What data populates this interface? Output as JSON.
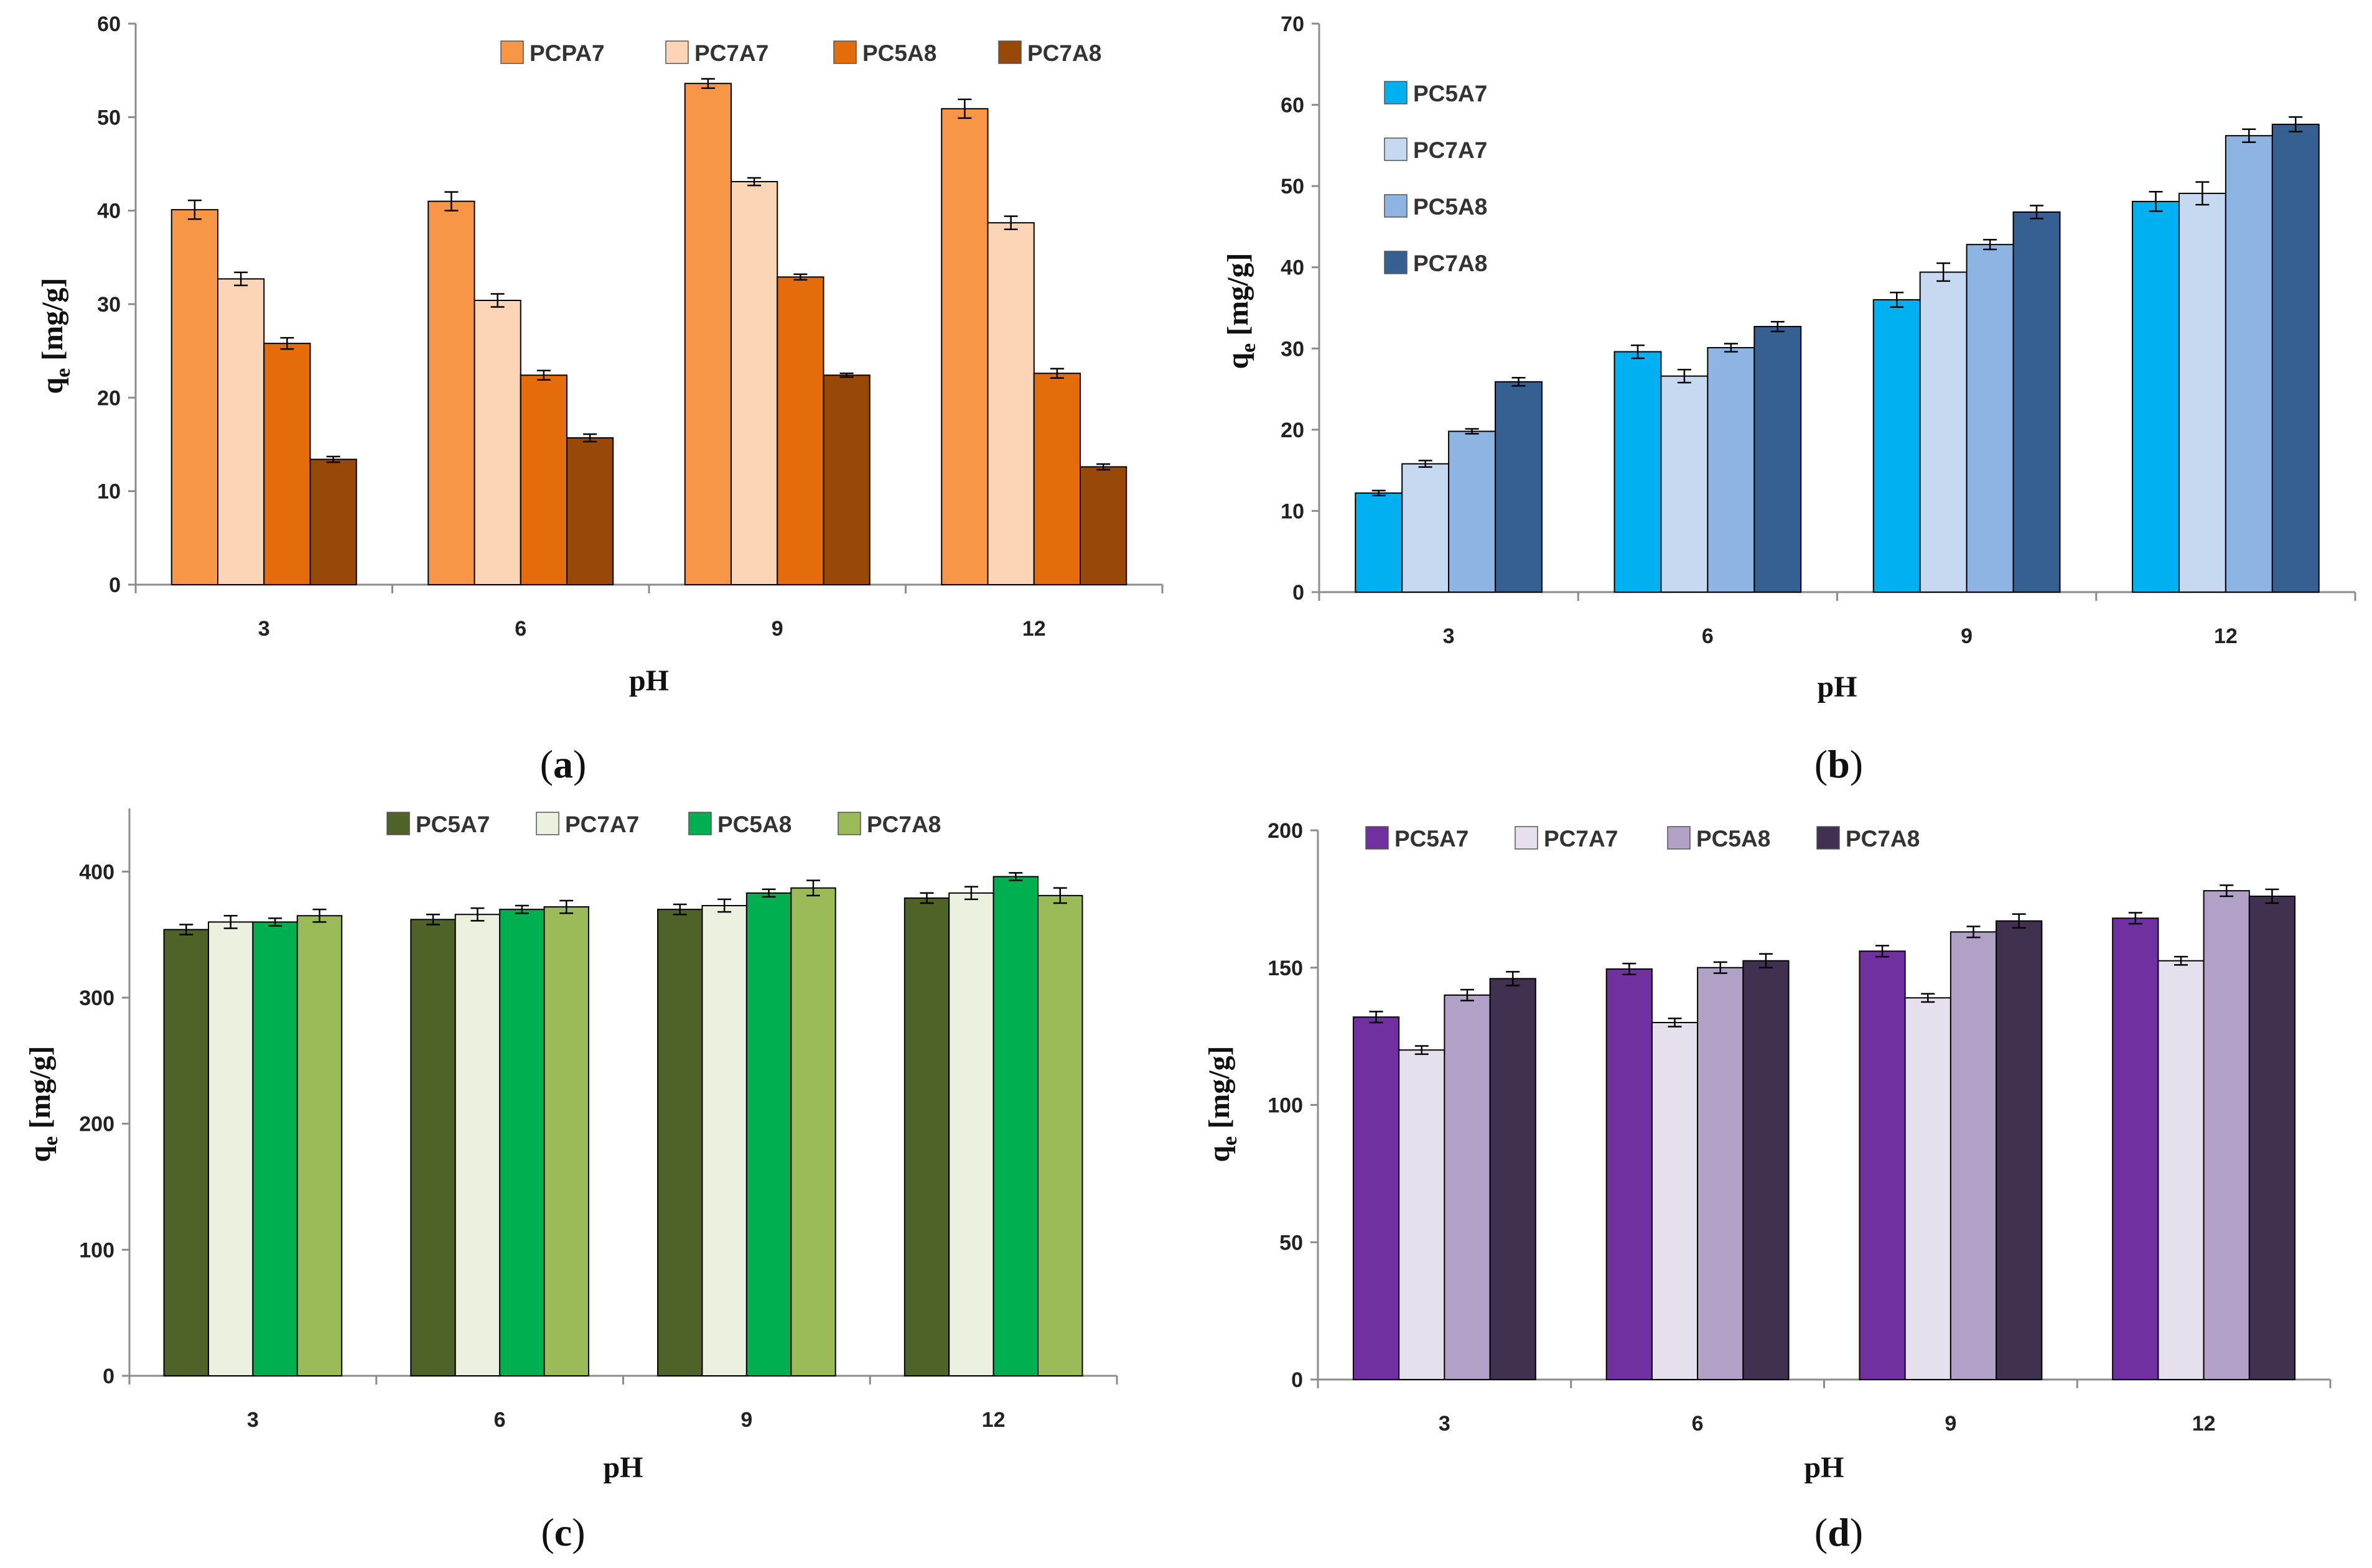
{
  "figure": {
    "chart_data": [
      {
        "type": "bar",
        "panel_label": "a",
        "categories": [
          "3",
          "6",
          "9",
          "12"
        ],
        "xlabel": "pH",
        "ylabel": "qe [mg/g]",
        "ylabel_main": "q",
        "ylabel_sub": "e",
        "ylabel_rest": " [mg/g]",
        "ylim": [
          0,
          60
        ],
        "yticks": [
          0,
          10,
          20,
          30,
          40,
          50,
          60
        ],
        "legend_position": "top-right",
        "legend_layout": "row",
        "series": [
          {
            "name": "PCPA7",
            "color": "#F79646",
            "values": [
              40.1,
              41.0,
              53.6,
              50.9
            ],
            "errors": [
              1.0,
              1.0,
              0.5,
              1.0
            ]
          },
          {
            "name": "PC7A7",
            "color": "#FBD5B5",
            "values": [
              32.7,
              30.4,
              43.1,
              38.7
            ],
            "errors": [
              0.7,
              0.7,
              0.4,
              0.7
            ]
          },
          {
            "name": "PC5A8",
            "color": "#E46C0A",
            "values": [
              25.8,
              22.4,
              32.9,
              22.6
            ],
            "errors": [
              0.6,
              0.5,
              0.3,
              0.5
            ]
          },
          {
            "name": "PC7A8",
            "color": "#984807",
            "values": [
              13.4,
              15.7,
              22.4,
              12.6
            ],
            "errors": [
              0.3,
              0.4,
              0.2,
              0.3
            ]
          }
        ]
      },
      {
        "type": "bar",
        "panel_label": "b",
        "categories": [
          "3",
          "6",
          "9",
          "12"
        ],
        "xlabel": "pH",
        "ylabel": "qe [mg/g]",
        "ylabel_main": "q",
        "ylabel_sub": "e",
        "ylabel_rest": " [mg/g]",
        "ylim": [
          0,
          70
        ],
        "yticks": [
          0,
          10,
          20,
          30,
          40,
          50,
          60,
          70
        ],
        "legend_position": "top-left",
        "legend_layout": "column",
        "series": [
          {
            "name": "PC5A7",
            "color": "#00B0F0",
            "values": [
              12.2,
              29.6,
              36.0,
              48.1
            ],
            "errors": [
              0.3,
              0.8,
              0.9,
              1.2
            ]
          },
          {
            "name": "PC7A7",
            "color": "#C6D9F1",
            "values": [
              15.8,
              26.6,
              39.4,
              49.1
            ],
            "errors": [
              0.4,
              0.8,
              1.1,
              1.4
            ]
          },
          {
            "name": "PC5A8",
            "color": "#8DB4E2",
            "values": [
              19.8,
              30.1,
              42.8,
              56.2
            ],
            "errors": [
              0.3,
              0.5,
              0.6,
              0.8
            ]
          },
          {
            "name": "PC7A8",
            "color": "#366092",
            "values": [
              25.9,
              32.7,
              46.8,
              57.6
            ],
            "errors": [
              0.5,
              0.6,
              0.8,
              0.9
            ]
          }
        ]
      },
      {
        "type": "bar",
        "panel_label": "c",
        "categories": [
          "3",
          "6",
          "9",
          "12"
        ],
        "xlabel": "pH",
        "ylabel": "qe [mg/g]",
        "ylabel_main": "q",
        "ylabel_sub": "e",
        "ylabel_rest": " [mg/g]",
        "ylim": [
          0,
          450
        ],
        "yticks": [
          0,
          100,
          200,
          300,
          400
        ],
        "legend_position": "top-center",
        "legend_layout": "row",
        "series": [
          {
            "name": "PC5A7",
            "color": "#4F6228",
            "values": [
              354,
              362,
              370,
              379
            ],
            "errors": [
              4,
              4,
              4,
              4
            ]
          },
          {
            "name": "PC7A7",
            "color": "#EBF1DE",
            "values": [
              360,
              366,
              373,
              383
            ],
            "errors": [
              5,
              5,
              5,
              5
            ]
          },
          {
            "name": "PC5A8",
            "color": "#00B050",
            "values": [
              360,
              370,
              383,
              396
            ],
            "errors": [
              3,
              3,
              3,
              3
            ]
          },
          {
            "name": "PC7A8",
            "color": "#9BBB59",
            "values": [
              365,
              372,
              387,
              381
            ],
            "errors": [
              5,
              5,
              6,
              6
            ]
          }
        ]
      },
      {
        "type": "bar",
        "panel_label": "d",
        "categories": [
          "3",
          "6",
          "9",
          "12"
        ],
        "xlabel": "pH",
        "ylabel": "qe [mg/g]",
        "ylabel_main": "q",
        "ylabel_sub": "e",
        "ylabel_rest": " [mg/g]",
        "ylim": [
          0,
          200
        ],
        "yticks": [
          0,
          50,
          100,
          150,
          200
        ],
        "legend_position": "top-left",
        "legend_layout": "row",
        "series": [
          {
            "name": "PC5A7",
            "color": "#7030A0",
            "values": [
              132,
              149.5,
              156,
              168
            ],
            "errors": [
              2,
              2,
              2,
              2
            ]
          },
          {
            "name": "PC7A7",
            "color": "#E6E0EC",
            "values": [
              120,
              130,
              139,
              152.5
            ],
            "errors": [
              1.5,
              1.5,
              1.5,
              1.5
            ]
          },
          {
            "name": "PC5A8",
            "color": "#B2A1C7",
            "values": [
              140,
              150,
              163,
              178
            ],
            "errors": [
              2,
              2,
              2,
              2
            ]
          },
          {
            "name": "PC7A8",
            "color": "#403151",
            "values": [
              146,
              152.5,
              167,
              176
            ],
            "errors": [
              2.5,
              2.5,
              2.5,
              2.5
            ]
          }
        ]
      }
    ]
  }
}
